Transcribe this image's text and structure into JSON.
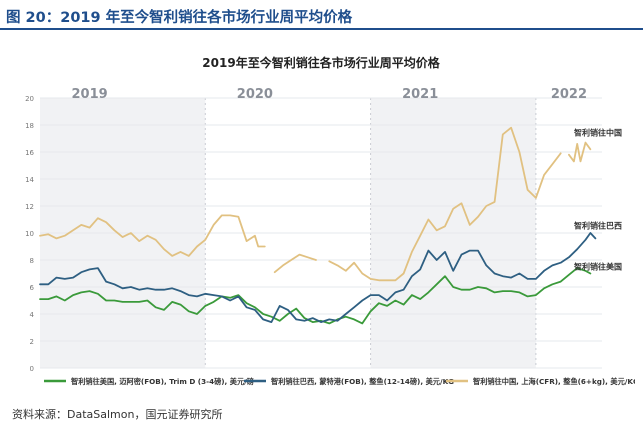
{
  "figure_title": "图 20：2019 年至今智利销往各市场行业周平均价格",
  "source": "资料来源：DataSalmon，国元证券研究所",
  "chart_data": {
    "type": "line",
    "title": "2019年至今智利销往各市场行业周平均价格",
    "xlabel": "",
    "ylabel": "",
    "ylim": [
      0,
      20
    ],
    "yticks": [
      0,
      2,
      4,
      6,
      8,
      10,
      12,
      14,
      16,
      18,
      20
    ],
    "x_range": [
      2019.0,
      2022.4
    ],
    "year_labels": [
      {
        "year": 2019.3,
        "label": "2019"
      },
      {
        "year": 2020.3,
        "label": "2020"
      },
      {
        "year": 2021.3,
        "label": "2021"
      },
      {
        "year": 2022.2,
        "label": "2022"
      }
    ],
    "grid": true,
    "legend_position": "bottom",
    "series": [
      {
        "name": "智利销往美国, 迈阿密(FOB), Trim D (3-4磅), 美元/磅",
        "end_label": "智利销往美国",
        "color": "#3a9a3a",
        "segments": [
          [
            [
              2019.0,
              5.1
            ],
            [
              2019.05,
              5.1
            ],
            [
              2019.1,
              5.3
            ],
            [
              2019.15,
              5.0
            ],
            [
              2019.2,
              5.4
            ],
            [
              2019.25,
              5.6
            ],
            [
              2019.3,
              5.7
            ],
            [
              2019.35,
              5.5
            ],
            [
              2019.4,
              5.0
            ],
            [
              2019.45,
              5.0
            ],
            [
              2019.5,
              4.9
            ],
            [
              2019.55,
              4.9
            ],
            [
              2019.6,
              4.9
            ],
            [
              2019.65,
              5.0
            ],
            [
              2019.7,
              4.5
            ],
            [
              2019.75,
              4.3
            ],
            [
              2019.8,
              4.9
            ],
            [
              2019.85,
              4.7
            ],
            [
              2019.9,
              4.2
            ],
            [
              2019.95,
              4.0
            ],
            [
              2020.0,
              4.6
            ],
            [
              2020.05,
              4.9
            ],
            [
              2020.1,
              5.3
            ],
            [
              2020.15,
              5.2
            ],
            [
              2020.2,
              5.4
            ],
            [
              2020.25,
              4.8
            ],
            [
              2020.3,
              4.5
            ],
            [
              2020.35,
              4.0
            ],
            [
              2020.4,
              3.8
            ],
            [
              2020.45,
              3.5
            ],
            [
              2020.5,
              4.0
            ],
            [
              2020.55,
              4.4
            ],
            [
              2020.6,
              3.7
            ],
            [
              2020.65,
              3.4
            ],
            [
              2020.7,
              3.5
            ],
            [
              2020.75,
              3.3
            ],
            [
              2020.8,
              3.6
            ],
            [
              2020.85,
              3.8
            ],
            [
              2020.9,
              3.6
            ],
            [
              2020.95,
              3.3
            ],
            [
              2021.0,
              4.2
            ],
            [
              2021.05,
              4.8
            ],
            [
              2021.1,
              4.6
            ],
            [
              2021.15,
              5.0
            ],
            [
              2021.2,
              4.7
            ],
            [
              2021.25,
              5.4
            ],
            [
              2021.3,
              5.1
            ],
            [
              2021.35,
              5.6
            ],
            [
              2021.4,
              6.2
            ],
            [
              2021.45,
              6.8
            ],
            [
              2021.5,
              6.0
            ],
            [
              2021.55,
              5.8
            ],
            [
              2021.6,
              5.8
            ],
            [
              2021.65,
              6.0
            ],
            [
              2021.7,
              5.9
            ],
            [
              2021.75,
              5.6
            ],
            [
              2021.8,
              5.7
            ],
            [
              2021.85,
              5.7
            ],
            [
              2021.9,
              5.6
            ],
            [
              2021.95,
              5.3
            ],
            [
              2022.0,
              5.4
            ],
            [
              2022.05,
              5.9
            ],
            [
              2022.1,
              6.2
            ],
            [
              2022.15,
              6.4
            ],
            [
              2022.2,
              6.9
            ],
            [
              2022.25,
              7.4
            ],
            [
              2022.3,
              7.2
            ],
            [
              2022.33,
              7.0
            ]
          ]
        ]
      },
      {
        "name": "智利销往巴西, 蒙特港(FOB), 整鱼(12-14磅), 美元/KG",
        "end_label": "智利销往巴西",
        "color": "#2e5f82",
        "segments": [
          [
            [
              2019.0,
              6.2
            ],
            [
              2019.05,
              6.2
            ],
            [
              2019.1,
              6.7
            ],
            [
              2019.15,
              6.6
            ],
            [
              2019.2,
              6.7
            ],
            [
              2019.25,
              7.1
            ],
            [
              2019.3,
              7.3
            ],
            [
              2019.35,
              7.4
            ],
            [
              2019.4,
              6.4
            ],
            [
              2019.45,
              6.2
            ],
            [
              2019.5,
              5.9
            ],
            [
              2019.55,
              6.0
            ],
            [
              2019.6,
              5.8
            ],
            [
              2019.65,
              5.9
            ],
            [
              2019.7,
              5.8
            ],
            [
              2019.75,
              5.8
            ],
            [
              2019.8,
              5.9
            ],
            [
              2019.85,
              5.7
            ],
            [
              2019.9,
              5.4
            ],
            [
              2019.95,
              5.3
            ],
            [
              2020.0,
              5.5
            ],
            [
              2020.05,
              5.4
            ],
            [
              2020.1,
              5.3
            ],
            [
              2020.15,
              5.0
            ],
            [
              2020.2,
              5.3
            ],
            [
              2020.25,
              4.5
            ],
            [
              2020.3,
              4.3
            ],
            [
              2020.35,
              3.6
            ],
            [
              2020.4,
              3.4
            ],
            [
              2020.45,
              4.6
            ],
            [
              2020.5,
              4.3
            ],
            [
              2020.55,
              3.6
            ],
            [
              2020.6,
              3.5
            ],
            [
              2020.65,
              3.7
            ],
            [
              2020.7,
              3.4
            ],
            [
              2020.75,
              3.6
            ],
            [
              2020.8,
              3.5
            ],
            [
              2020.85,
              4.0
            ],
            [
              2020.9,
              4.5
            ],
            [
              2020.95,
              5.0
            ],
            [
              2021.0,
              5.4
            ],
            [
              2021.05,
              5.4
            ],
            [
              2021.1,
              5.0
            ],
            [
              2021.15,
              5.6
            ],
            [
              2021.2,
              5.8
            ],
            [
              2021.25,
              6.8
            ],
            [
              2021.3,
              7.3
            ],
            [
              2021.35,
              8.7
            ],
            [
              2021.4,
              8.0
            ],
            [
              2021.45,
              8.6
            ],
            [
              2021.5,
              7.2
            ],
            [
              2021.55,
              8.4
            ],
            [
              2021.6,
              8.7
            ],
            [
              2021.65,
              8.7
            ],
            [
              2021.7,
              7.6
            ],
            [
              2021.75,
              7.0
            ],
            [
              2021.8,
              6.8
            ],
            [
              2021.85,
              6.7
            ],
            [
              2021.9,
              7.0
            ],
            [
              2021.95,
              6.6
            ],
            [
              2022.0,
              6.6
            ],
            [
              2022.05,
              7.2
            ],
            [
              2022.1,
              7.6
            ],
            [
              2022.15,
              7.8
            ],
            [
              2022.2,
              8.2
            ],
            [
              2022.25,
              8.8
            ],
            [
              2022.3,
              9.5
            ],
            [
              2022.33,
              10.0
            ],
            [
              2022.36,
              9.6
            ]
          ]
        ]
      },
      {
        "name": "智利销往中国, 上海(CFR), 整鱼(6+kg), 美元/KG",
        "end_label": "智利销往中国",
        "color": "#e1c181",
        "segments": [
          [
            [
              2019.0,
              9.8
            ],
            [
              2019.05,
              9.9
            ],
            [
              2019.1,
              9.6
            ],
            [
              2019.15,
              9.8
            ],
            [
              2019.2,
              10.2
            ],
            [
              2019.25,
              10.6
            ],
            [
              2019.3,
              10.4
            ],
            [
              2019.35,
              11.1
            ],
            [
              2019.4,
              10.8
            ],
            [
              2019.45,
              10.2
            ],
            [
              2019.5,
              9.7
            ],
            [
              2019.55,
              10.0
            ],
            [
              2019.6,
              9.4
            ],
            [
              2019.65,
              9.8
            ],
            [
              2019.7,
              9.5
            ],
            [
              2019.75,
              8.8
            ],
            [
              2019.8,
              8.3
            ],
            [
              2019.85,
              8.6
            ],
            [
              2019.9,
              8.3
            ],
            [
              2019.95,
              9.0
            ],
            [
              2020.0,
              9.5
            ],
            [
              2020.05,
              10.6
            ],
            [
              2020.1,
              11.3
            ],
            [
              2020.15,
              11.3
            ],
            [
              2020.2,
              11.2
            ],
            [
              2020.25,
              9.4
            ],
            [
              2020.3,
              9.8
            ],
            [
              2020.32,
              9.0
            ],
            [
              2020.36,
              9.0
            ]
          ],
          [
            [
              2020.42,
              7.1
            ],
            [
              2020.47,
              7.6
            ],
            [
              2020.52,
              8.0
            ],
            [
              2020.57,
              8.4
            ],
            [
              2020.62,
              8.2
            ],
            [
              2020.67,
              8.0
            ]
          ],
          [
            [
              2020.75,
              7.9
            ],
            [
              2020.8,
              7.6
            ],
            [
              2020.85,
              7.2
            ],
            [
              2020.9,
              7.8
            ],
            [
              2020.95,
              7.0
            ],
            [
              2021.0,
              6.6
            ],
            [
              2021.05,
              6.5
            ],
            [
              2021.1,
              6.5
            ],
            [
              2021.15,
              6.5
            ],
            [
              2021.2,
              7.0
            ],
            [
              2021.25,
              8.6
            ],
            [
              2021.3,
              9.8
            ],
            [
              2021.35,
              11.0
            ],
            [
              2021.4,
              10.2
            ],
            [
              2021.45,
              10.5
            ],
            [
              2021.5,
              11.8
            ],
            [
              2021.55,
              12.2
            ],
            [
              2021.6,
              10.6
            ],
            [
              2021.65,
              11.2
            ],
            [
              2021.7,
              12.0
            ],
            [
              2021.75,
              12.3
            ],
            [
              2021.8,
              17.3
            ],
            [
              2021.85,
              17.8
            ],
            [
              2021.9,
              16.0
            ],
            [
              2021.95,
              13.2
            ],
            [
              2022.0,
              12.6
            ],
            [
              2022.05,
              14.3
            ],
            [
              2022.1,
              15.1
            ],
            [
              2022.15,
              15.9
            ]
          ],
          [
            [
              2022.2,
              15.8
            ],
            [
              2022.23,
              15.3
            ],
            [
              2022.25,
              16.6
            ],
            [
              2022.27,
              15.3
            ],
            [
              2022.3,
              16.7
            ],
            [
              2022.33,
              16.2
            ]
          ]
        ]
      }
    ]
  }
}
